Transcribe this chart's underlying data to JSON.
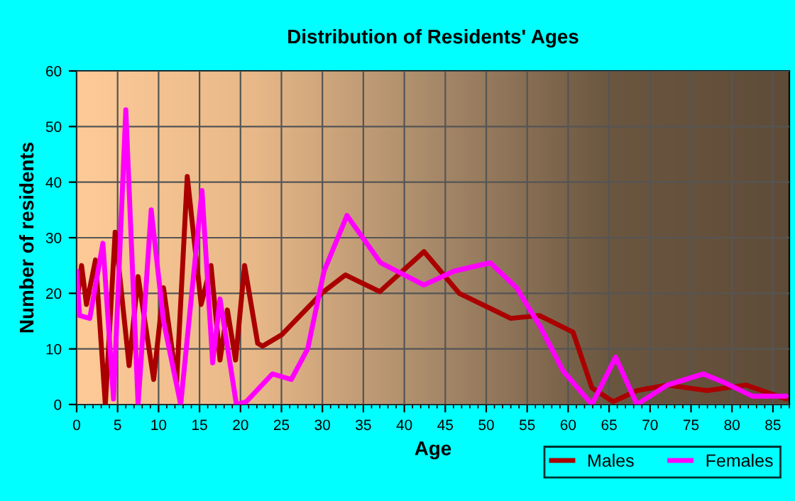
{
  "chart_data": {
    "type": "line",
    "title": "Distribution of Residents' Ages",
    "xlabel": "Age",
    "ylabel": "Number of residents",
    "xlim": [
      0,
      87
    ],
    "xticks": [
      0,
      5,
      10,
      15,
      20,
      25,
      30,
      35,
      40,
      45,
      50,
      55,
      60,
      65,
      70,
      75,
      80,
      85
    ],
    "ylim": [
      0,
      60
    ],
    "yticks": [
      0,
      10,
      20,
      30,
      40,
      50,
      60
    ],
    "grid": true,
    "legend": "bottom right",
    "marker": "none",
    "line_style": "solid",
    "series": [
      {
        "name": "Males",
        "color": "#aa0000",
        "x": [
          0,
          0.6,
          1.2,
          2.3,
          3.5,
          4.7,
          6.4,
          7.5,
          9.4,
          10.6,
          12.2,
          13.5,
          15.2,
          16.4,
          17.5,
          18.4,
          19.4,
          20.5,
          22.1,
          22.7,
          25,
          29.9,
          32.8,
          37,
          42.4,
          46.7,
          53,
          56.5,
          60.6,
          62.9,
          65.5,
          68.4,
          72.1,
          77,
          81.7,
          86.6
        ],
        "values": [
          18,
          25,
          18,
          26,
          0,
          31,
          7,
          23,
          4.5,
          21,
          4,
          41,
          18,
          25,
          8,
          17,
          8,
          25,
          11,
          10.5,
          12.5,
          20,
          23.3,
          20.3,
          27.5,
          20,
          15.5,
          16,
          13,
          3,
          0.5,
          2.5,
          3.5,
          2.5,
          3.5,
          1
        ]
      },
      {
        "name": "Females",
        "color": "#ff00ff",
        "x": [
          0,
          0.35,
          1.6,
          3.2,
          4.5,
          6,
          7.5,
          9.1,
          10.6,
          12.7,
          15.3,
          16.6,
          17.5,
          19.5,
          20.7,
          23.9,
          26.2,
          28.2,
          30.2,
          33,
          37.1,
          42.4,
          46.1,
          50.5,
          53.7,
          56.6,
          59.4,
          62.9,
          65.8,
          68.4,
          72.1,
          76.5,
          79,
          82.5,
          86.6
        ],
        "values": [
          24,
          16,
          15.5,
          29,
          1,
          53,
          0,
          35,
          15,
          0,
          38.5,
          7.5,
          19,
          0,
          0.5,
          5.5,
          4.5,
          10,
          24,
          34,
          25.5,
          21.5,
          24,
          25.5,
          21,
          14,
          6,
          0,
          8.5,
          0,
          3.5,
          5.5,
          4,
          1.5,
          1.5
        ]
      }
    ]
  }
}
